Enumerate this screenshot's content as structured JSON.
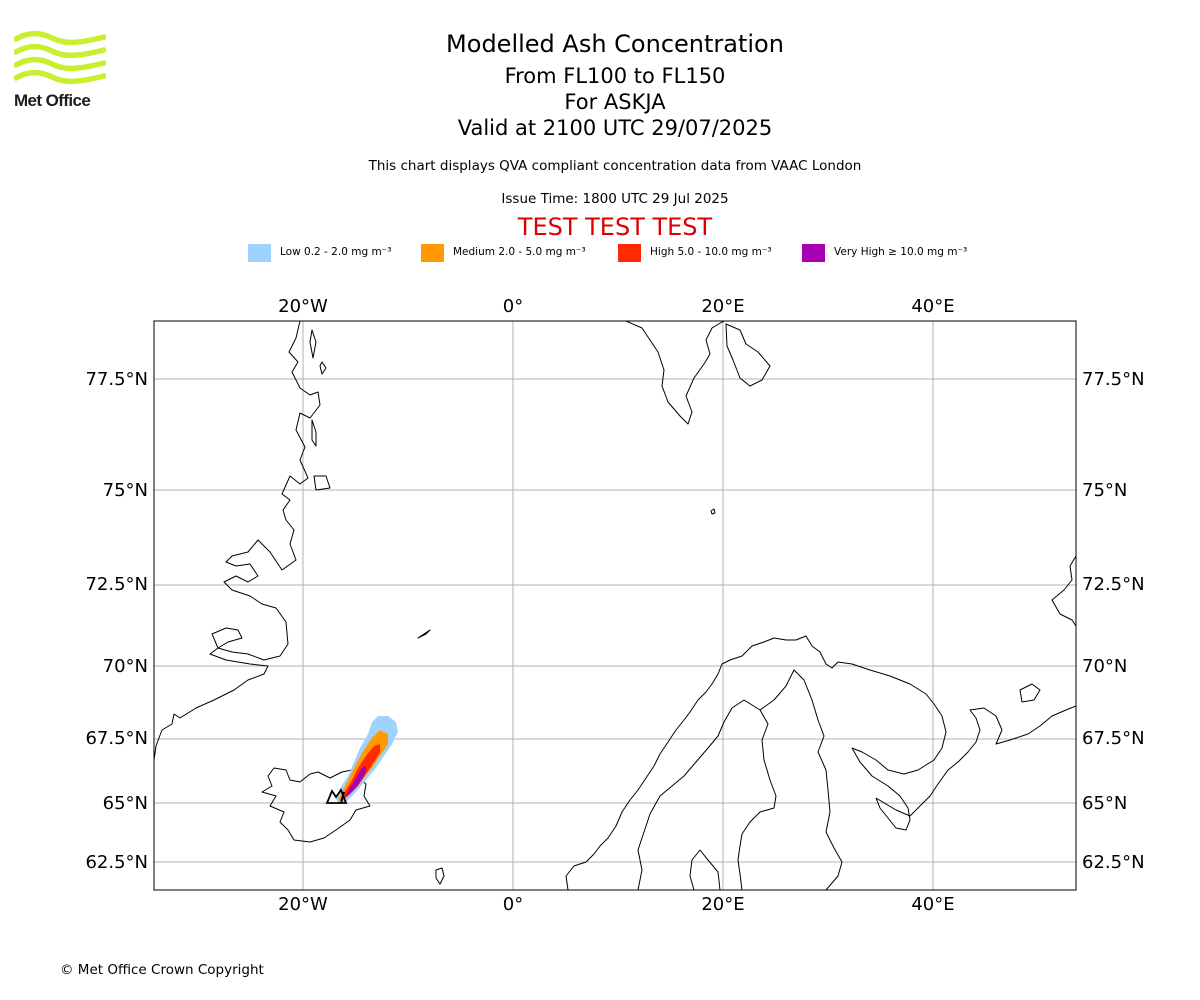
{
  "brand": {
    "logo_text": "Met Office",
    "logo_color": "#c8f031"
  },
  "header": {
    "title": "Modelled Ash Concentration",
    "levels": "From FL100 to FL150",
    "volcano": "For ASKJA",
    "valid": "Valid at 2100 UTC 29/07/2025",
    "description": "This chart displays QVA compliant concentration data from VAAC London",
    "issue_time": "Issue Time: 1800 UTC 29 Jul 2025",
    "test_banner": "TEST TEST TEST",
    "test_color": "#dd0000"
  },
  "legend": [
    {
      "label": "Low 0.2 - 2.0 mg m⁻³",
      "color": "#a0d2ff"
    },
    {
      "label": "Medium 2.0 - 5.0 mg m⁻³",
      "color": "#ff9a05"
    },
    {
      "label": "High 5.0 - 10.0 mg m⁻³",
      "color": "#ff2a00"
    },
    {
      "label": "Very High ≥ 10.0 mg m⁻³",
      "color": "#aa00b4"
    }
  ],
  "map": {
    "grid_color": "#b0b0b0",
    "lon_labels": [
      "20°W",
      "0°",
      "20°E",
      "40°E"
    ],
    "lat_labels": [
      "77.5°N",
      "75°N",
      "72.5°N",
      "70°N",
      "67.5°N",
      "65°N",
      "62.5°N"
    ]
  },
  "footer": {
    "copyright": "© Met Office Crown Copyright"
  }
}
